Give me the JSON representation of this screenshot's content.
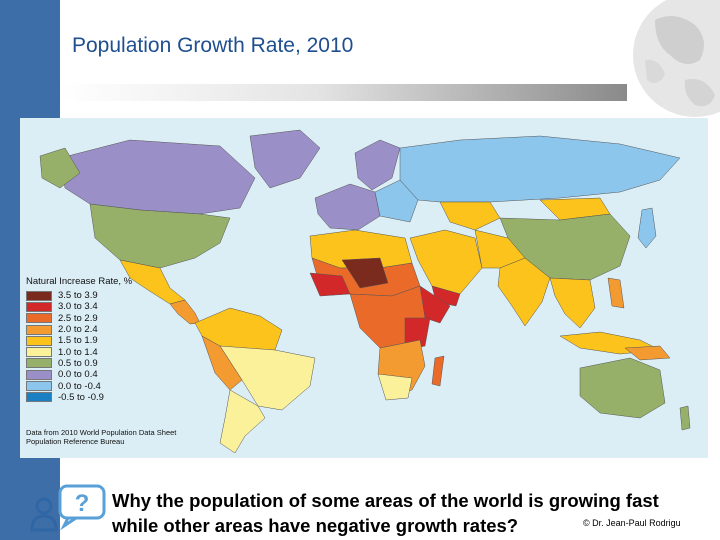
{
  "slide": {
    "title": "Population Growth Rate, 2010",
    "question_line1": "Why the population of some areas of the world is growing fast",
    "question_line2": "while other areas have negative growth rates?",
    "credit": "© Dr. Jean-Paul Rodrigu"
  },
  "legend": {
    "title": "Natural Increase Rate, %",
    "items": [
      {
        "label": "3.5 to 3.9",
        "color": "#7b2a1e"
      },
      {
        "label": "3.0 to 3.4",
        "color": "#d2282a"
      },
      {
        "label": "2.5 to 2.9",
        "color": "#ea6a2a"
      },
      {
        "label": "2.0 to 2.4",
        "color": "#f39a30"
      },
      {
        "label": "1.5 to 1.9",
        "color": "#fbc31b"
      },
      {
        "label": "1.0 to 1.4",
        "color": "#fbf19a"
      },
      {
        "label": "0.5 to 0.9",
        "color": "#96b06a"
      },
      {
        "label": "0.0 to 0.4",
        "color": "#9b8fc8"
      },
      {
        "label": "0.0 to -0.4",
        "color": "#8cc6ec"
      },
      {
        "label": "-0.5 to -0.9",
        "color": "#1b7fc4"
      }
    ],
    "source_line1": "Data from 2010 World Population Data Sheet",
    "source_line2": "Population Reference Bureau"
  },
  "colors": {
    "ocean": "#dbeef5",
    "side_bar": "#3d6ea8",
    "title": "#1f4f8f"
  }
}
